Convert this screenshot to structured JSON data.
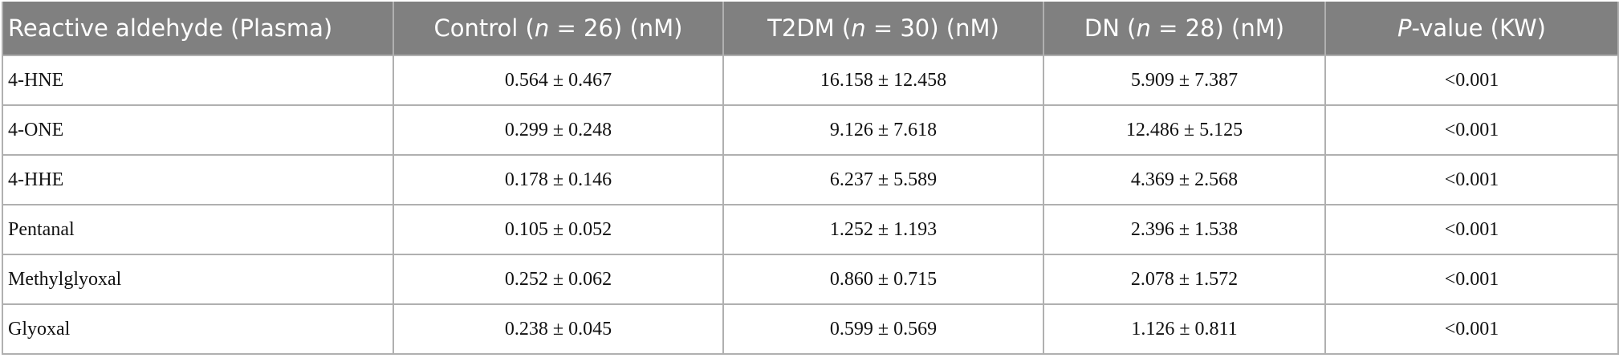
{
  "table": {
    "header": [
      [
        "Reactive aldehyde (Plasma)"
      ],
      [
        "Control (",
        "n",
        " = 26) (nM)"
      ],
      [
        "T2DM (",
        "n",
        " = 30) (nM)"
      ],
      [
        "DN (",
        "n",
        " = 28) (nM)"
      ],
      [
        "",
        "P",
        "-value (KW)"
      ]
    ],
    "rows": [
      [
        "4-HNE",
        "0.564 ± 0.467",
        "16.158 ± 12.458",
        "5.909 ± 7.387",
        "<0.001"
      ],
      [
        "4-ONE",
        "0.299 ± 0.248",
        "9.126 ± 7.618",
        "12.486 ± 5.125",
        "<0.001"
      ],
      [
        "4-HHE",
        "0.178 ± 0.146",
        "6.237 ± 5.589",
        "4.369 ± 2.568",
        "<0.001"
      ],
      [
        "Pentanal",
        "0.105 ± 0.052",
        "1.252 ± 1.193",
        "2.396 ± 1.538",
        "<0.001"
      ],
      [
        "Methylglyoxal",
        "0.252 ± 0.062",
        "0.860 ± 0.715",
        "2.078 ± 1.572",
        "<0.001"
      ],
      [
        "Glyoxal",
        "0.238 ± 0.045",
        "0.599 ± 0.569",
        "1.126 ± 0.811",
        "<0.001"
      ]
    ]
  }
}
